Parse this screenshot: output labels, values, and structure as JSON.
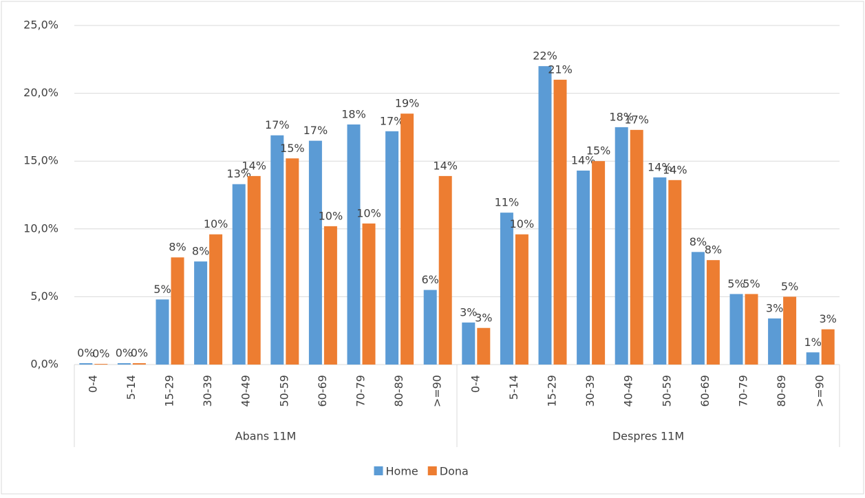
{
  "chart_data": {
    "type": "bar",
    "groups": [
      {
        "name": "Abans 11M",
        "categories": [
          "0-4",
          "5-14",
          "15-29",
          "30-39",
          "40-49",
          "50-59",
          "60-69",
          "70-79",
          "80-89",
          ">=90"
        ]
      },
      {
        "name": "Despres 11M",
        "categories": [
          "0-4",
          "5-14",
          "15-29",
          "30-39",
          "40-49",
          "50-59",
          "60-69",
          "70-79",
          "80-89",
          ">=90"
        ]
      }
    ],
    "series": [
      {
        "name": "Home",
        "color": "#5b9bd5",
        "values": [
          0.1,
          0.1,
          4.8,
          7.6,
          13.3,
          16.9,
          16.5,
          17.7,
          17.2,
          5.5,
          3.1,
          11.2,
          22.0,
          14.3,
          17.5,
          13.8,
          8.3,
          5.2,
          3.4,
          0.9
        ],
        "value_labels": [
          "0%",
          "0%",
          "5%",
          "8%",
          "13%",
          "17%",
          "17%",
          "18%",
          "17%",
          "6%",
          "3%",
          "11%",
          "22%",
          "14%",
          "18%",
          "14%",
          "8%",
          "5%",
          "3%",
          "1%"
        ]
      },
      {
        "name": "Dona",
        "color": "#ed7d31",
        "values": [
          0.05,
          0.1,
          7.9,
          9.6,
          13.9,
          15.2,
          10.2,
          10.4,
          18.5,
          13.9,
          2.7,
          9.6,
          21.0,
          15.0,
          17.3,
          13.6,
          7.7,
          5.2,
          5.0,
          2.6
        ],
        "value_labels": [
          "0%",
          "0%",
          "8%",
          "10%",
          "14%",
          "15%",
          "10%",
          "10%",
          "19%",
          "14%",
          "3%",
          "10%",
          "21%",
          "15%",
          "17%",
          "14%",
          "8%",
          "5%",
          "5%",
          "3%"
        ]
      }
    ],
    "ylim": [
      0,
      25
    ],
    "yticks": [
      {
        "value": 0,
        "label": "0,0%"
      },
      {
        "value": 5,
        "label": "5,0%"
      },
      {
        "value": 10,
        "label": "10,0%"
      },
      {
        "value": 15,
        "label": "15,0%"
      },
      {
        "value": 20,
        "label": "20,0%"
      },
      {
        "value": 25,
        "label": "25,0%"
      }
    ],
    "grid": true,
    "legend": "bottom"
  }
}
